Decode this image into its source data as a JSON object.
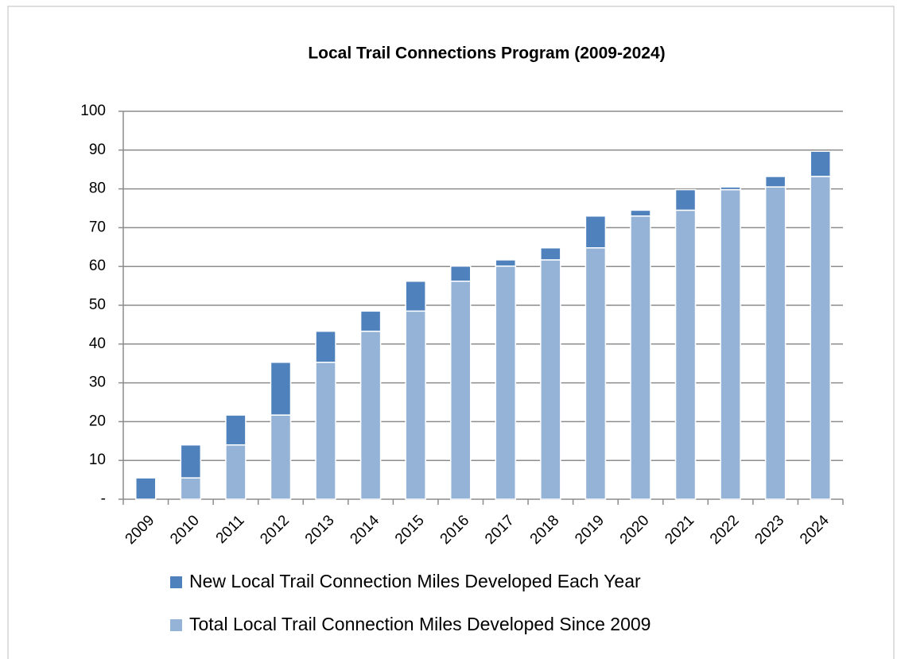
{
  "chart_data": {
    "type": "bar",
    "stacked": true,
    "title": "Local Trail Connections Program (2009-2024)",
    "categories": [
      "2009",
      "2010",
      "2011",
      "2012",
      "2013",
      "2014",
      "2015",
      "2016",
      "2017",
      "2018",
      "2019",
      "2020",
      "2021",
      "2022",
      "2023",
      "2024"
    ],
    "series": [
      {
        "name": "New Local Trail Connection Miles Developed Each Year",
        "color": "#4f81bd",
        "values": [
          5.5,
          8.5,
          7.7,
          13.6,
          8,
          5.2,
          7.7,
          3.9,
          1.6,
          3.1,
          8.2,
          1.5,
          5.3,
          0.7,
          2.7,
          6.5
        ]
      },
      {
        "name": "Total Local Trail Connection Miles Developed Since 2009",
        "color": "#95b3d7",
        "values": [
          0,
          5.5,
          14,
          21.7,
          35.3,
          43.3,
          48.5,
          56.2,
          60.1,
          61.7,
          64.8,
          73,
          74.5,
          79.8,
          80.5,
          83.2
        ]
      }
    ],
    "ylim": [
      0,
      100
    ],
    "yticks": [
      {
        "value": 0,
        "label": "-"
      },
      10,
      20,
      30,
      40,
      50,
      60,
      70,
      80,
      90,
      100
    ],
    "grid": true
  }
}
